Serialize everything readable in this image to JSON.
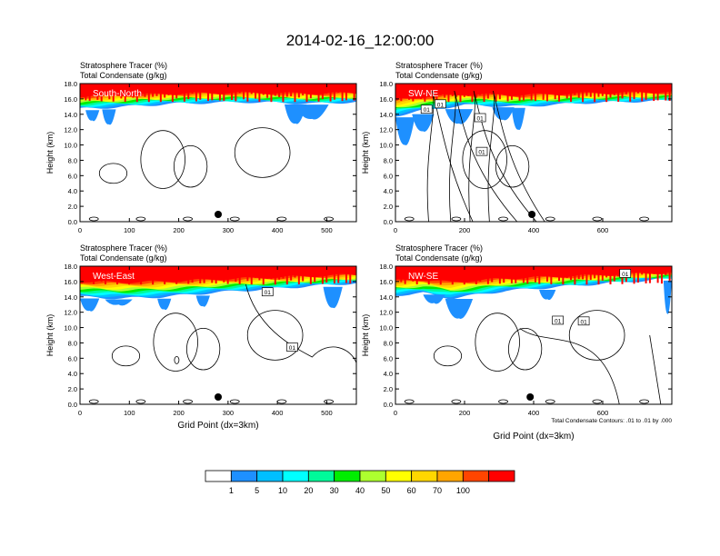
{
  "title": "2014-02-16_12:00:00",
  "colors": {
    "text": "#000000",
    "levels": [
      "#ffffff",
      "#1e90ff",
      "#00bfff",
      "#00ffff",
      "#00fa9a",
      "#00ee00",
      "#adff2f",
      "#ffff00",
      "#ffd700",
      "#ffa500",
      "#ff4500",
      "#ff0000"
    ]
  },
  "chart_data": [
    {
      "type": "heatmap",
      "panel_label": "South-North",
      "left_title": "Stratosphere Tracer   (%)",
      "left_subtitle": "Total Condensate   (g/kg)",
      "ylabel": "Height (km)",
      "xlabel": "",
      "xlim": [
        0,
        560
      ],
      "ylim": [
        0,
        18
      ],
      "xticks": [
        0,
        100,
        200,
        300,
        400,
        500
      ],
      "yticks": [
        "0.0",
        "2.0",
        "4.0",
        "6.0",
        "8.0",
        "10.0",
        "12.0",
        "14.0",
        "16.0",
        "18.0"
      ],
      "marker_x": 280,
      "contour_labels": []
    },
    {
      "type": "heatmap",
      "panel_label": "SW-NE",
      "left_title": "Stratosphere Tracer   (%)",
      "left_subtitle": "Total Condensate   (g/kg)",
      "ylabel": "Height (km)",
      "xlabel": "",
      "xlim": [
        0,
        800
      ],
      "ylim": [
        0,
        18
      ],
      "xticks": [
        0,
        200,
        400,
        600
      ],
      "yticks": [
        "0.0",
        "2.0",
        "4.0",
        "6.0",
        "8.0",
        "10.0",
        "12.0",
        "14.0",
        "16.0",
        "18.0"
      ],
      "marker_x": 395,
      "contour_labels": [
        {
          "text": "01",
          "x": 90,
          "y": 14.6
        },
        {
          "text": "01",
          "x": 130,
          "y": 15.3
        },
        {
          "text": "01",
          "x": 245,
          "y": 13.5
        },
        {
          "text": "01",
          "x": 250,
          "y": 9.1
        }
      ]
    },
    {
      "type": "heatmap",
      "panel_label": "West-East",
      "left_title": "Stratosphere Tracer   (%)",
      "left_subtitle": "Total Condensate   (g/kg)",
      "ylabel": "Height (km)",
      "xlabel": "Grid Point (dx=3km)",
      "xlim": [
        0,
        560
      ],
      "ylim": [
        0,
        18
      ],
      "xticks": [
        0,
        100,
        200,
        300,
        400,
        500
      ],
      "yticks": [
        "0.0",
        "2.0",
        "4.0",
        "6.0",
        "8.0",
        "10.0",
        "12.0",
        "14.0",
        "16.0",
        "18.0"
      ],
      "marker_x": 280,
      "contour_labels": [
        {
          "text": "01",
          "x": 380,
          "y": 14.6
        },
        {
          "text": "01",
          "x": 430,
          "y": 7.4
        }
      ]
    },
    {
      "type": "heatmap",
      "panel_label": "NW-SE",
      "left_title": "Stratosphere Tracer   (%)",
      "left_subtitle": "Total Condensate   (g/kg)",
      "ylabel": "Height (km)",
      "xlabel": "Grid Point (dx=3km)",
      "xlim": [
        0,
        800
      ],
      "ylim": [
        0,
        18
      ],
      "xticks": [
        0,
        200,
        400,
        600
      ],
      "yticks": [
        "0.0",
        "2.0",
        "4.0",
        "6.0",
        "8.0",
        "10.0",
        "12.0",
        "14.0",
        "16.0",
        "18.0"
      ],
      "marker_x": 390,
      "contour_labels": [
        {
          "text": "01",
          "x": 665,
          "y": 17.0
        },
        {
          "text": "01",
          "x": 545,
          "y": 10.8
        },
        {
          "text": "01",
          "x": 470,
          "y": 10.9
        }
      ],
      "footnote": "Total Condensate Contours: .01 to .01 by .000"
    }
  ],
  "colorbar": {
    "labels": [
      "1",
      "5",
      "10",
      "20",
      "30",
      "40",
      "50",
      "60",
      "70",
      "100"
    ],
    "boundaries": [
      1,
      5,
      10,
      20,
      30,
      40,
      50,
      60,
      70,
      100
    ]
  }
}
